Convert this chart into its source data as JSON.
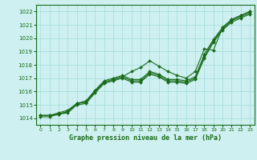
{
  "title": "Graphe pression niveau de la mer (hPa)",
  "bg_color": "#cef0f0",
  "grid_color": "#aadddd",
  "line_color": "#1a6b1a",
  "marker_color": "#1a6b1a",
  "xlim": [
    -0.5,
    23.5
  ],
  "ylim": [
    1013.5,
    1022.5
  ],
  "yticks": [
    1014,
    1015,
    1016,
    1017,
    1018,
    1019,
    1020,
    1021,
    1022
  ],
  "xticks": [
    0,
    1,
    2,
    3,
    4,
    5,
    6,
    7,
    8,
    9,
    10,
    11,
    12,
    13,
    14,
    15,
    16,
    17,
    18,
    19,
    20,
    21,
    22,
    23
  ],
  "series": [
    [
      1014.2,
      1014.2,
      1014.3,
      1014.5,
      1015.1,
      1015.2,
      1016.0,
      1016.7,
      1016.9,
      1017.1,
      1016.8,
      1016.8,
      1017.4,
      1017.2,
      1016.8,
      1016.8,
      1016.7,
      1017.0,
      1018.6,
      1019.8,
      1020.7,
      1021.3,
      1021.6,
      1021.9
    ],
    [
      1014.2,
      1014.2,
      1014.4,
      1014.6,
      1015.1,
      1015.3,
      1016.1,
      1016.8,
      1017.0,
      1017.2,
      1016.9,
      1016.9,
      1017.5,
      1017.3,
      1016.9,
      1016.9,
      1016.8,
      1017.1,
      1018.8,
      1019.9,
      1020.8,
      1021.4,
      1021.7,
      1022.0
    ],
    [
      1014.1,
      1014.1,
      1014.3,
      1014.4,
      1015.0,
      1015.1,
      1015.9,
      1016.6,
      1016.8,
      1017.0,
      1016.7,
      1016.7,
      1017.3,
      1017.1,
      1016.7,
      1016.7,
      1016.6,
      1016.9,
      1018.5,
      1019.7,
      1020.6,
      1021.2,
      1021.5,
      1021.8
    ]
  ],
  "diverging_series": [
    1014.2,
    1014.2,
    1014.3,
    1014.5,
    1015.1,
    1015.2,
    1016.0,
    1016.7,
    1016.9,
    1017.1,
    1017.5,
    1017.8,
    1018.3,
    1017.9,
    1017.5,
    1017.2,
    1017.0,
    1017.5,
    1019.2,
    1019.1,
    1020.8,
    1021.4,
    1021.7,
    1022.0
  ]
}
